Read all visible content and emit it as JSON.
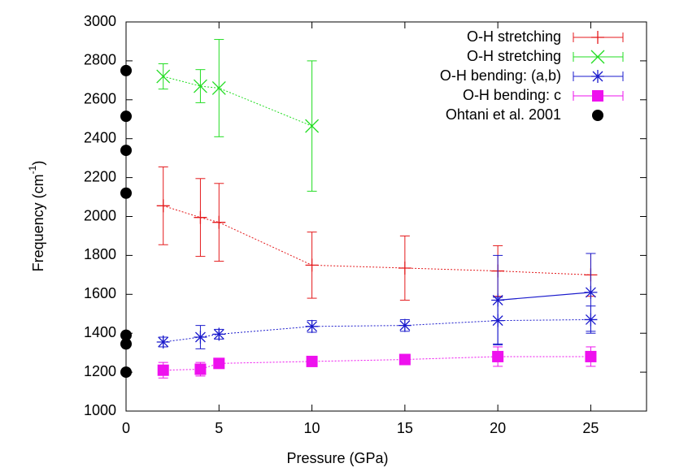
{
  "chart_data": {
    "type": "errorbar",
    "x_label": "Pressure (GPa)",
    "y_label": "Frequency (cm",
    "y_label_sup": "-1",
    "y_label_end": ")",
    "xlim": [
      0,
      28
    ],
    "xticks": [
      0,
      5,
      10,
      15,
      20,
      25
    ],
    "ylim": [
      1000,
      3000
    ],
    "yticks": [
      1000,
      1200,
      1400,
      1600,
      1800,
      2000,
      2200,
      2400,
      2600,
      2800,
      3000
    ],
    "legend": "top-right",
    "series": [
      {
        "name": "O-H stretching",
        "color": "#e41a1c",
        "marker": "plus",
        "x": [
          2,
          4,
          5,
          10,
          15,
          20,
          25
        ],
        "values": [
          2055,
          1995,
          1970,
          1750,
          1735,
          1720,
          1700
        ],
        "errors": [
          200,
          200,
          200,
          170,
          165,
          130,
          110
        ]
      },
      {
        "name": "O-H stretching",
        "color": "#22dd22",
        "marker": "cross",
        "x": [
          2,
          4,
          5,
          10
        ],
        "values": [
          2720,
          2670,
          2660,
          2465
        ],
        "errors": [
          65,
          85,
          250,
          335
        ]
      },
      {
        "name": "O-H bending: (a,b)",
        "color": "#1a1acc",
        "marker": "star",
        "x": [
          2,
          4,
          5,
          10,
          15,
          20,
          25,
          null,
          20,
          25
        ],
        "values": [
          1355,
          1380,
          1395,
          1435,
          1440,
          1465,
          1470,
          null,
          1570,
          1610
        ],
        "errors": [
          25,
          60,
          25,
          30,
          30,
          120,
          70,
          null,
          230,
          200
        ]
      },
      {
        "name": "O-H bending: c",
        "color": "#ee11ee",
        "marker": "square",
        "x": [
          2,
          4,
          5,
          10,
          15,
          20,
          25
        ],
        "values": [
          1210,
          1215,
          1245,
          1255,
          1265,
          1280,
          1280
        ],
        "errors": [
          40,
          35,
          15,
          15,
          15,
          50,
          50
        ]
      },
      {
        "name": "Ohtani et al. 2001",
        "color": "#000000",
        "marker": "circle",
        "x": [
          0,
          0,
          0,
          0,
          0,
          0,
          0
        ],
        "values": [
          2750,
          2515,
          2340,
          2120,
          1390,
          1345,
          1200
        ]
      }
    ]
  }
}
